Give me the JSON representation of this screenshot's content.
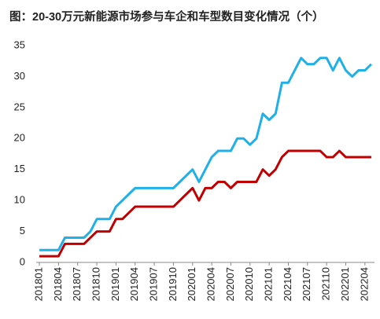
{
  "chart_data": {
    "type": "line",
    "title": "图：20-30万元新能源市场参与车企和车型数目变化情况（个）",
    "categories": [
      "201801",
      null,
      null,
      "201804",
      null,
      null,
      "201807",
      null,
      null,
      "201810",
      null,
      null,
      "201901",
      null,
      null,
      "201904",
      null,
      null,
      "201907",
      null,
      null,
      "201910",
      null,
      null,
      "202001",
      null,
      null,
      "202004",
      null,
      null,
      "202007",
      null,
      null,
      "202010",
      null,
      null,
      "202101",
      null,
      null,
      "202104",
      null,
      null,
      "202107",
      null,
      null,
      "202110",
      null,
      null,
      "202201",
      null,
      null,
      "202204",
      null
    ],
    "series": [
      {
        "color": "#1fb0e8",
        "values": [
          2,
          2,
          2,
          2,
          4,
          4,
          4,
          4,
          5,
          7,
          7,
          7,
          9,
          10,
          11,
          12,
          12,
          12,
          12,
          12,
          12,
          12,
          13,
          14,
          15,
          13,
          15,
          17,
          18,
          18,
          18,
          20,
          20,
          19,
          20,
          24,
          23,
          24,
          29,
          29,
          31,
          33,
          32,
          32,
          33,
          33,
          31,
          33,
          31,
          30,
          31,
          31,
          32
        ]
      },
      {
        "color": "#c00000",
        "values": [
          1,
          1,
          1,
          1,
          3,
          3,
          3,
          3,
          4,
          5,
          5,
          5,
          7,
          7,
          8,
          9,
          9,
          9,
          9,
          9,
          9,
          9,
          10,
          11,
          12,
          10,
          12,
          12,
          13,
          13,
          12,
          13,
          13,
          13,
          13,
          15,
          14,
          15,
          17,
          18,
          18,
          18,
          18,
          18,
          18,
          17,
          17,
          18,
          17,
          17,
          17,
          17,
          17
        ]
      }
    ],
    "ylim": [
      0,
      35
    ],
    "yticks": [
      0,
      5,
      10,
      15,
      20,
      25,
      30,
      35
    ],
    "grid": false
  }
}
